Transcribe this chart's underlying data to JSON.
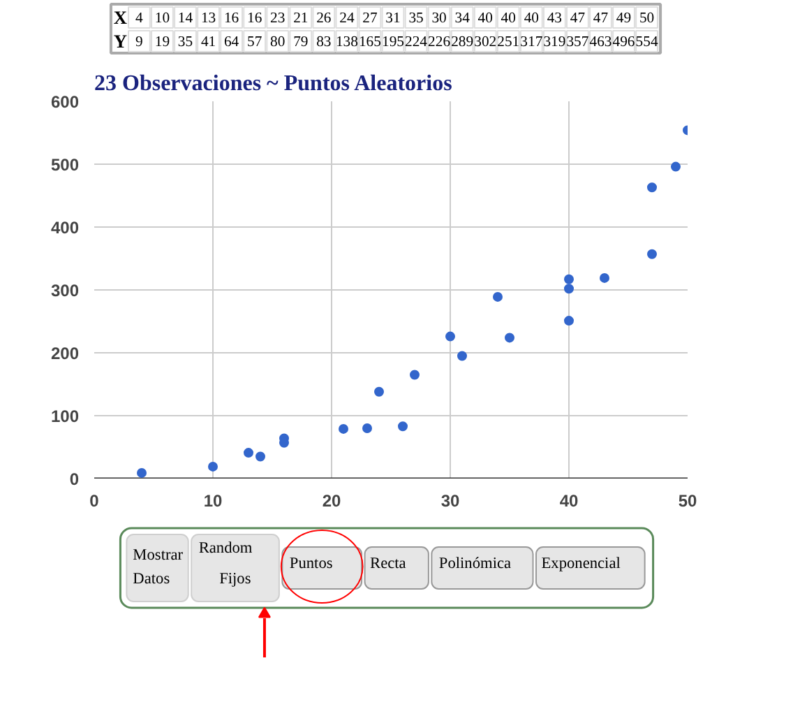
{
  "chart_data": {
    "type": "scatter",
    "title": "23 Observaciones ~ Puntos Aleatorios",
    "x": [
      4,
      10,
      14,
      13,
      16,
      16,
      23,
      21,
      26,
      24,
      27,
      31,
      35,
      30,
      34,
      40,
      40,
      40,
      43,
      47,
      47,
      49,
      50
    ],
    "values": [
      9,
      19,
      35,
      41,
      64,
      57,
      80,
      79,
      83,
      138,
      165,
      195,
      224,
      226,
      289,
      302,
      251,
      317,
      319,
      357,
      463,
      496,
      554
    ],
    "color": "#3366cc",
    "marker": "circle",
    "xlim": [
      0,
      50
    ],
    "xticks": [
      0,
      10,
      20,
      30,
      40,
      50
    ],
    "ylim": [
      0,
      600
    ],
    "yticks": [
      0,
      100,
      200,
      300,
      400,
      500,
      600
    ],
    "grid": true,
    "annotations": [
      "X",
      "4",
      "10",
      "14",
      "13",
      "16",
      "16",
      "23",
      "21",
      "26",
      "24",
      "27",
      "31",
      "35",
      "30",
      "34",
      "40",
      "40",
      "40",
      "43",
      "47",
      "47",
      "49",
      "50",
      "Y",
      "9",
      "19",
      "35",
      "41",
      "64",
      "57",
      "80",
      "79",
      "83",
      "138",
      "165",
      "195",
      "224",
      "226",
      "289",
      "302",
      "251",
      "317",
      "319",
      "357",
      "463",
      "496",
      "554",
      "Mostrar Datos",
      "Random",
      "Fijos",
      "Puntos",
      "Recta",
      "Polinómica",
      "Exponencial"
    ]
  }
}
